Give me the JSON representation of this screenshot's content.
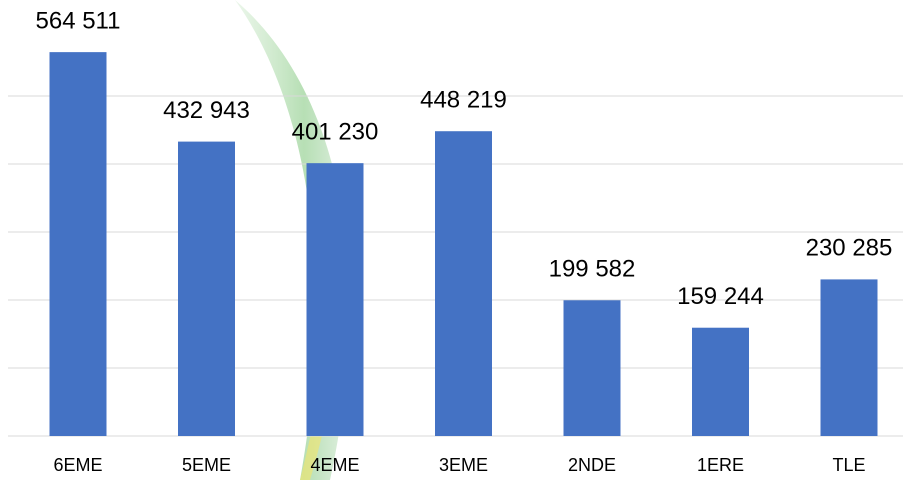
{
  "chart_data": {
    "type": "bar",
    "categories": [
      "6EME",
      "5EME",
      "4EME",
      "3EME",
      "2NDE",
      "1ERE",
      "TLE"
    ],
    "values": [
      564511,
      432943,
      401230,
      448219,
      199582,
      159244,
      230285
    ],
    "value_labels": [
      "564 511",
      "432 943",
      "401 230",
      "448 219",
      "199 582",
      "159 244",
      "230 285"
    ],
    "color": "#4472c4",
    "ylim": [
      0,
      600000
    ],
    "yticks": [
      0,
      100000,
      200000,
      300000,
      400000,
      500000
    ],
    "grid": true
  }
}
